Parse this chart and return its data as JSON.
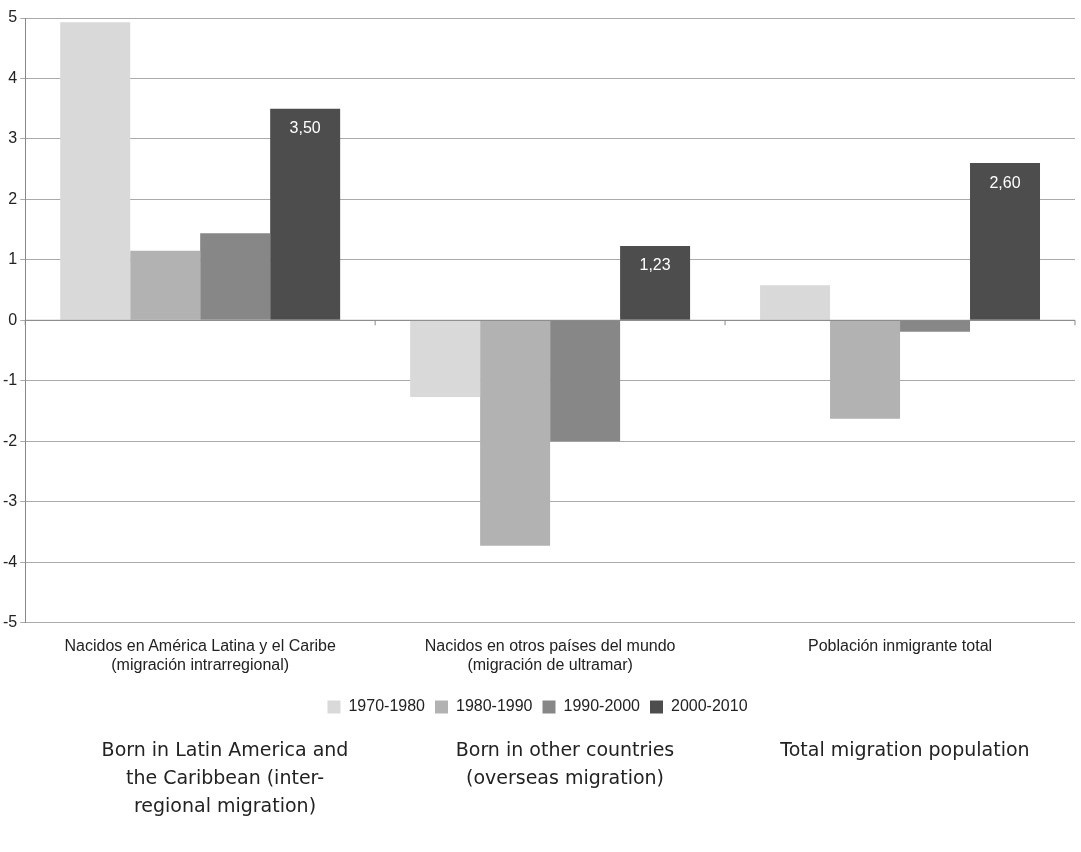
{
  "chart_data": {
    "type": "bar",
    "categories": [
      "Nacidos en América Latina y el Caribe\n(migración intrarregional)",
      "Nacidos en otros países del mundo\n(migración de ultramar)",
      "Población inmigrante total"
    ],
    "series": [
      {
        "name": "1970-1980",
        "color": "#d9d9d9",
        "values": [
          4.93,
          -1.27,
          0.58
        ]
      },
      {
        "name": "1980-1990",
        "color": "#b2b2b2",
        "values": [
          1.15,
          -3.73,
          -1.63
        ]
      },
      {
        "name": "1990-2000",
        "color": "#878787",
        "values": [
          1.44,
          -2.0,
          -0.19
        ]
      },
      {
        "name": "2000-2010",
        "color": "#4d4d4d",
        "values": [
          3.5,
          1.23,
          2.6
        ],
        "value_labels": [
          "3,50",
          "1,23",
          "2,60"
        ]
      }
    ],
    "ylim": [
      -5,
      5
    ],
    "yticks": [
      -5,
      -4,
      -3,
      -2,
      -1,
      0,
      1,
      2,
      3,
      4,
      5
    ],
    "grid": "y",
    "legend": "bottom",
    "annotations": [
      "Born in Latin America and the Caribbean (inter-regional migration)",
      "Born in other countries (overseas migration)",
      "Total migration population"
    ]
  }
}
